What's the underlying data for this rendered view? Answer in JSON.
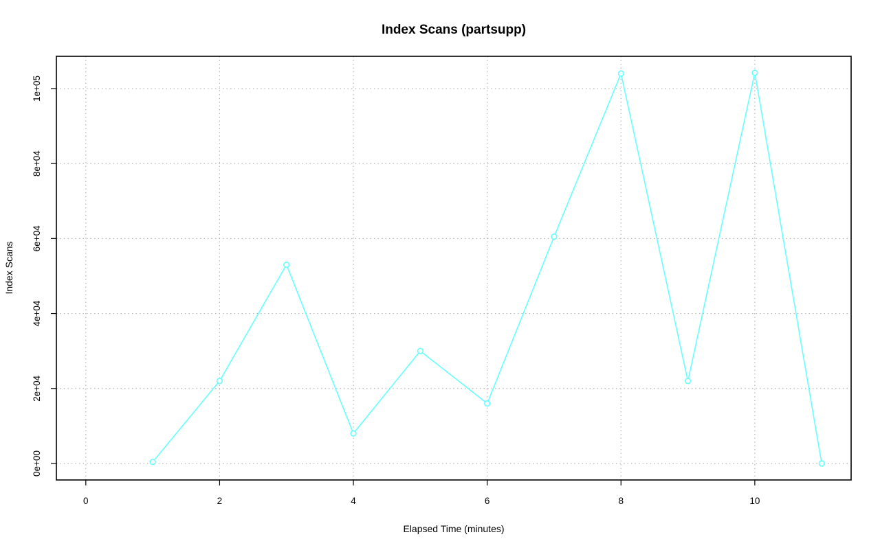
{
  "chart_data": {
    "type": "line",
    "title": "Index Scans (partsupp)",
    "xlabel": "Elapsed Time (minutes)",
    "ylabel": "Index Scans",
    "xlim": [
      -0.44,
      11.44
    ],
    "ylim": [
      -4400,
      108600
    ],
    "x_ticks": [
      0,
      2,
      4,
      6,
      8,
      10
    ],
    "x_tick_labels": [
      "0",
      "2",
      "4",
      "6",
      "8",
      "10"
    ],
    "y_ticks": [
      0,
      20000,
      40000,
      60000,
      80000,
      100000
    ],
    "y_tick_labels": [
      "0e+00",
      "2e+04",
      "4e+04",
      "6e+04",
      "8e+04",
      "1e+05"
    ],
    "grid": true,
    "series_color": "#66ffff",
    "series": [
      {
        "x": [
          1,
          2,
          3,
          4,
          5,
          6,
          7,
          8,
          9,
          10,
          11
        ],
        "values": [
          400,
          22000,
          53000,
          8000,
          30000,
          16000,
          60500,
          104000,
          22000,
          104200,
          0
        ]
      }
    ]
  }
}
